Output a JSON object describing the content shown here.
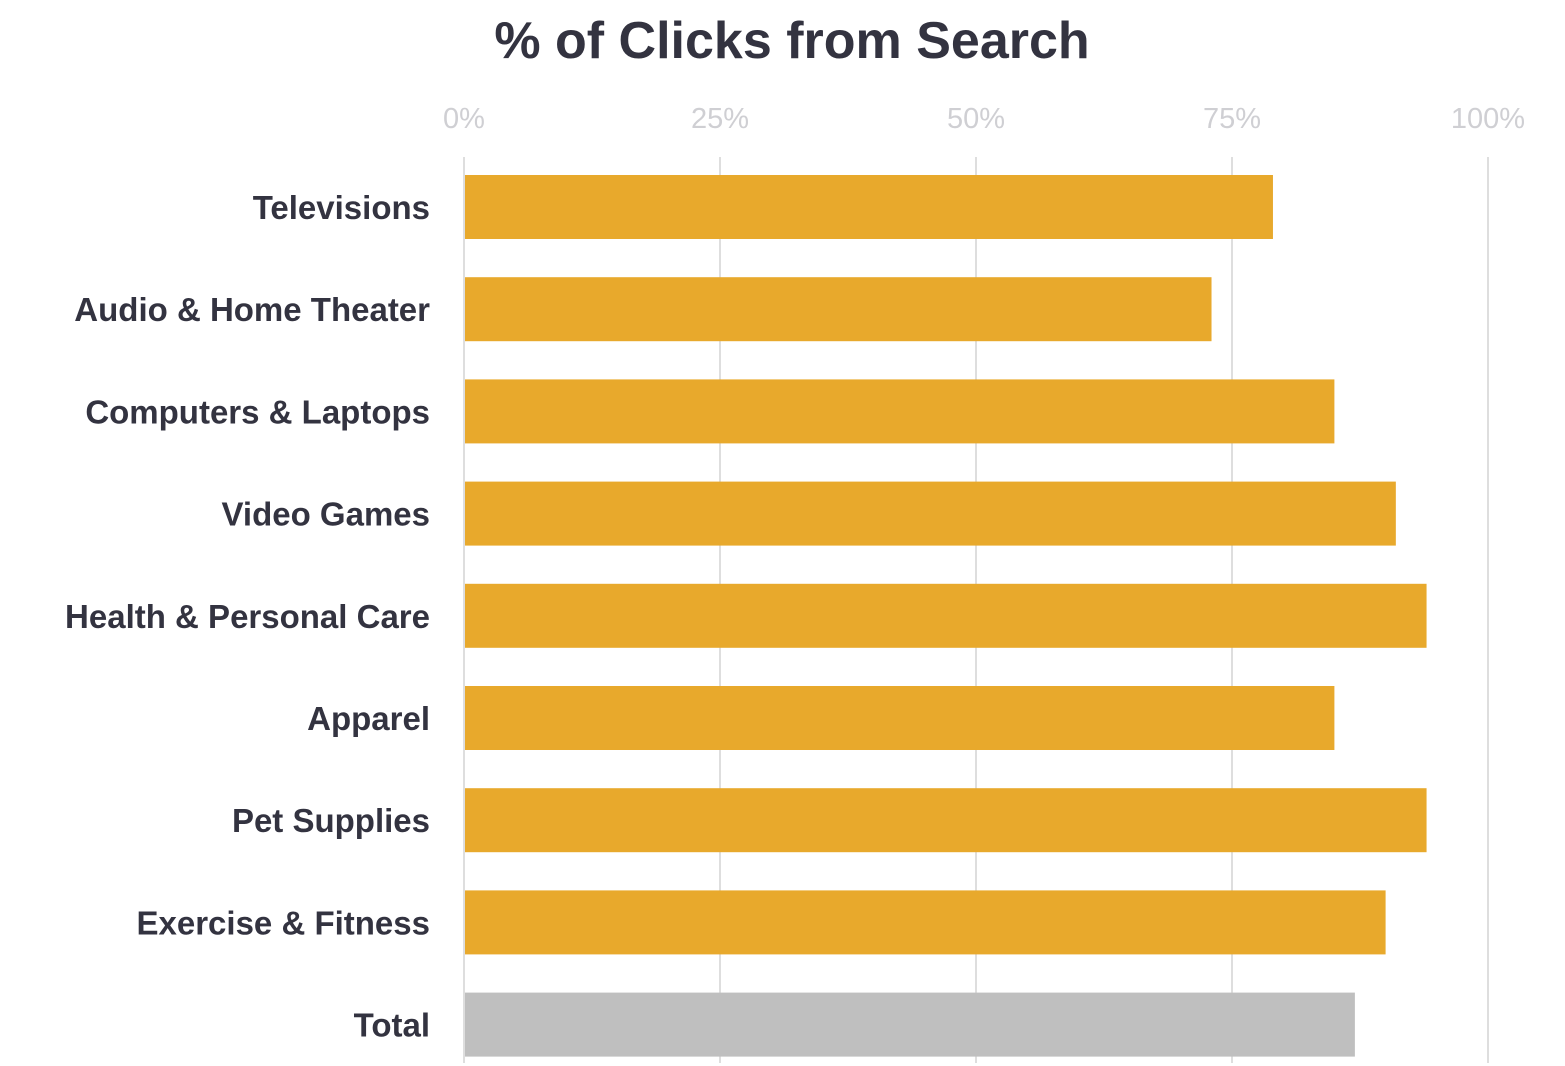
{
  "chart_data": {
    "type": "bar",
    "orientation": "horizontal",
    "title": "% of Clicks from Search",
    "xlabel": "",
    "ylabel": "",
    "xlim": [
      0,
      100
    ],
    "x_ticks": [
      0,
      25,
      50,
      75,
      100
    ],
    "x_tick_labels": [
      "0%",
      "25%",
      "50%",
      "75%",
      "100%"
    ],
    "x_axis_position": "top",
    "grid": true,
    "categories": [
      "Televisions",
      "Audio & Home Theater",
      "Computers & Laptops",
      "Video Games",
      "Health & Personal Care",
      "Apparel",
      "Pet Supplies",
      "Exercise & Fitness",
      "Total"
    ],
    "values": [
      79,
      73,
      85,
      91,
      94,
      85,
      94,
      90,
      87
    ],
    "bar_colors": [
      "#e8a92c",
      "#e8a92c",
      "#e8a92c",
      "#e8a92c",
      "#e8a92c",
      "#e8a92c",
      "#e8a92c",
      "#e8a92c",
      "#bfbfbf"
    ],
    "colors": {
      "bar": "#e8a92c",
      "total_bar": "#bfbfbf",
      "title": "#333340",
      "category_label": "#333340",
      "tick_label": "#cfcfd3",
      "gridline": "#dedede",
      "background": "#ffffff"
    }
  }
}
